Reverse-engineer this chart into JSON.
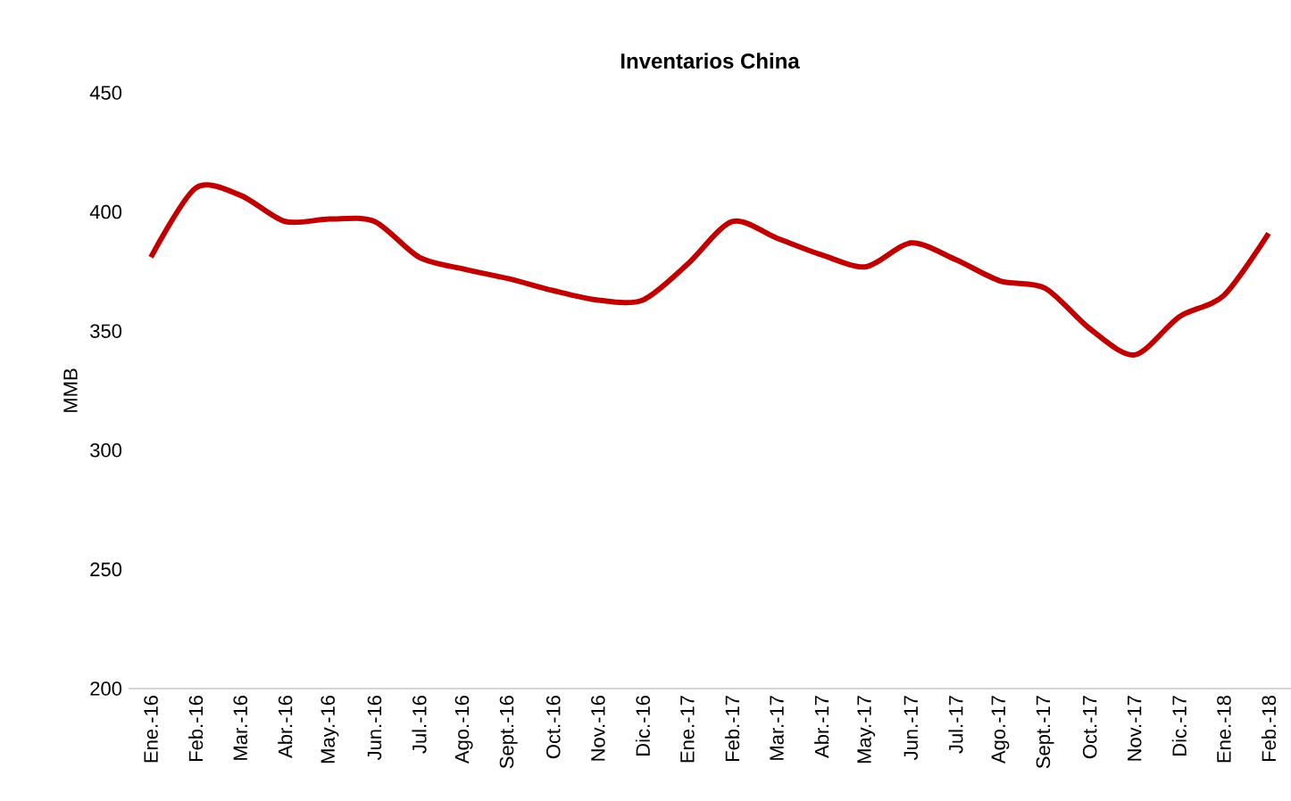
{
  "chart_data": {
    "type": "line",
    "title": "Inventarios China",
    "ylabel": "MMB",
    "categories": [
      "Ene.-16",
      "Feb.-16",
      "Mar.-16",
      "Abr.-16",
      "May.-16",
      "Jun.-16",
      "Jul.-16",
      "Ago.-16",
      "Sept.-16",
      "Oct.-16",
      "Nov.-16",
      "Dic.-16",
      "Ene.-17",
      "Feb.-17",
      "Mar.-17",
      "Abr.-17",
      "May.-17",
      "Jun.-17",
      "Jul.-17",
      "Ago.-17",
      "Sept.-17",
      "Oct.-17",
      "Nov.-17",
      "Dic.-17",
      "Ene.-18",
      "Feb.-18"
    ],
    "series": [
      {
        "color": "#c00000",
        "values": [
          381,
          410,
          407,
          396,
          397,
          396,
          381,
          376,
          372,
          367,
          363,
          363,
          378,
          396,
          389,
          382,
          377,
          387,
          380,
          371,
          368,
          351,
          340,
          356,
          365,
          391
        ]
      }
    ],
    "ylim": [
      200,
      450
    ],
    "yticks": [
      200,
      250,
      300,
      350,
      400,
      450
    ],
    "grid": false,
    "legend": false,
    "marker": "none",
    "line_style": "solid"
  }
}
